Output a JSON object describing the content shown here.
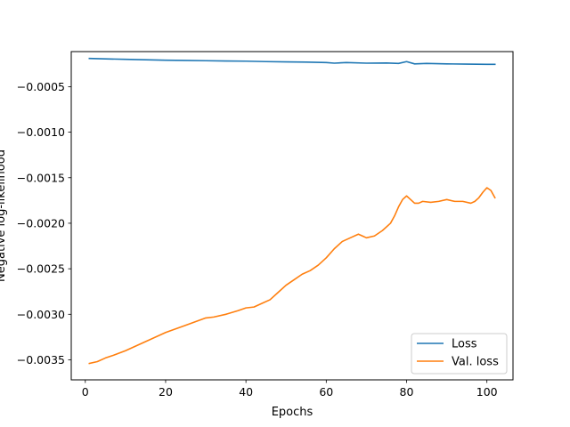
{
  "chart_data": {
    "type": "line",
    "xlabel": "Epochs",
    "ylabel": "Negative log-likelihood",
    "xlim": [
      -3.5,
      106.5
    ],
    "ylim": [
      -0.00372,
      -0.000115
    ],
    "xticks": [
      0,
      20,
      40,
      60,
      80,
      100
    ],
    "xtick_labels": [
      "0",
      "20",
      "40",
      "60",
      "80",
      "100"
    ],
    "yticks": [
      -0.0035,
      -0.003,
      -0.0025,
      -0.002,
      -0.0015,
      -0.001,
      -0.0005
    ],
    "ytick_labels": [
      "−0.0035",
      "−0.0030",
      "−0.0025",
      "−0.0020",
      "−0.0015",
      "−0.0010",
      "−0.0005"
    ],
    "grid": false,
    "legend_position": "lower-right",
    "series": [
      {
        "name": "Loss",
        "color": "#1f77b4",
        "x": [
          1,
          5,
          10,
          15,
          20,
          25,
          30,
          35,
          40,
          45,
          50,
          55,
          60,
          62,
          65,
          70,
          75,
          78,
          80,
          82,
          85,
          90,
          95,
          100,
          102
        ],
        "y": [
          -0.00019,
          -0.000195,
          -0.0002,
          -0.000205,
          -0.00021,
          -0.000212,
          -0.000215,
          -0.000218,
          -0.00022,
          -0.000225,
          -0.000228,
          -0.00023,
          -0.000235,
          -0.000242,
          -0.000235,
          -0.000242,
          -0.00024,
          -0.000245,
          -0.000225,
          -0.00025,
          -0.000245,
          -0.00025,
          -0.000252,
          -0.000255,
          -0.000255
        ]
      },
      {
        "name": "Val. loss",
        "color": "#ff7f0e",
        "x": [
          1,
          3,
          5,
          7,
          10,
          15,
          20,
          25,
          30,
          32,
          35,
          38,
          40,
          42,
          44,
          46,
          48,
          50,
          52,
          54,
          56,
          58,
          60,
          62,
          64,
          66,
          68,
          69,
          70,
          72,
          74,
          76,
          77,
          78,
          79,
          80,
          81,
          82,
          83,
          84,
          86,
          88,
          90,
          92,
          94,
          96,
          97,
          98,
          99,
          100,
          101,
          102
        ],
        "y": [
          -0.00354,
          -0.00352,
          -0.00348,
          -0.00345,
          -0.0034,
          -0.0033,
          -0.0032,
          -0.00312,
          -0.00304,
          -0.00303,
          -0.003,
          -0.00296,
          -0.00293,
          -0.00292,
          -0.00288,
          -0.00284,
          -0.00276,
          -0.00268,
          -0.00262,
          -0.00256,
          -0.00252,
          -0.00246,
          -0.00238,
          -0.00228,
          -0.0022,
          -0.00216,
          -0.00212,
          -0.00214,
          -0.00216,
          -0.00214,
          -0.00208,
          -0.002,
          -0.00192,
          -0.00182,
          -0.00174,
          -0.0017,
          -0.00174,
          -0.00178,
          -0.00178,
          -0.00176,
          -0.00177,
          -0.00176,
          -0.00174,
          -0.00176,
          -0.00176,
          -0.00178,
          -0.00176,
          -0.00172,
          -0.00166,
          -0.00161,
          -0.00164,
          -0.00172
        ]
      }
    ]
  }
}
